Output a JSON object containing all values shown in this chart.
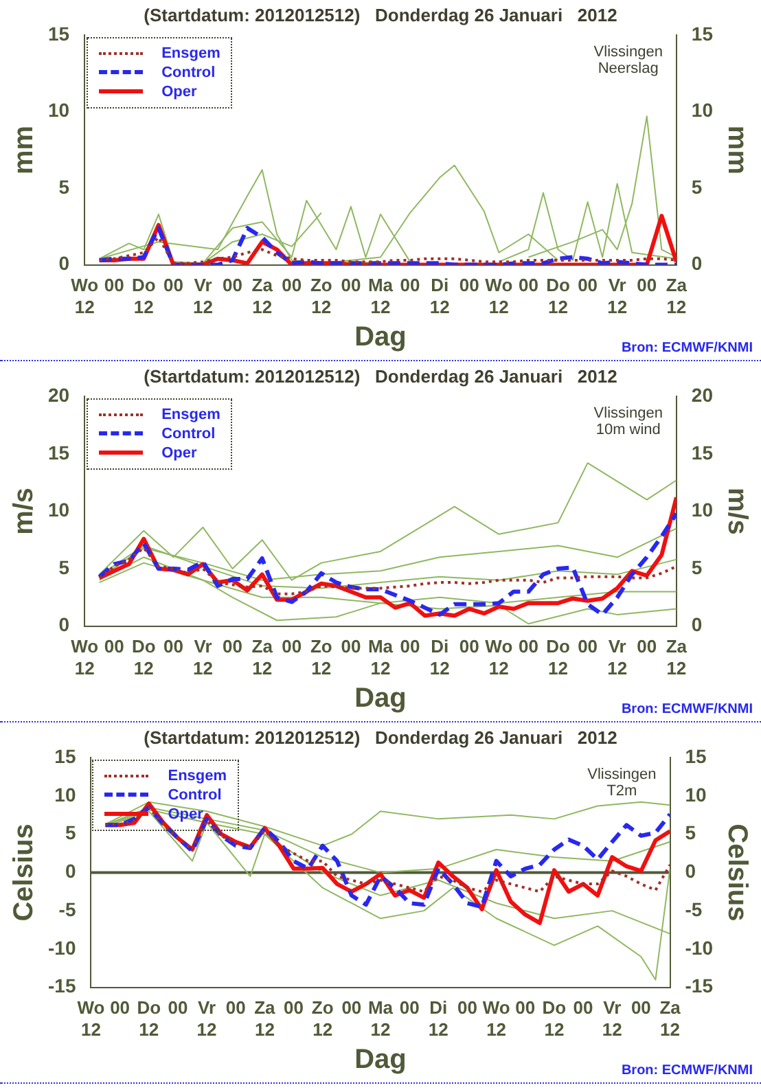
{
  "chart_data": [
    {
      "type": "line",
      "title": "(Startdatum: 2012012512)   Donderdag 26 Januari   2012",
      "xlabel": "Dag",
      "ylabel": "mm",
      "y2label": "mm",
      "annotations": [
        "Vlissingen",
        "Neerslag",
        "Bron: ECMWF/KNMI"
      ],
      "x": [
        "2012-01-25T18:00",
        "2012-01-26T00:00",
        "2012-01-26T06:00",
        "2012-01-26T12:00",
        "2012-01-26T18:00",
        "2012-01-27T00:00",
        "2012-01-27T06:00",
        "2012-01-27T12:00",
        "2012-01-27T18:00",
        "2012-01-28T00:00",
        "2012-01-28T06:00",
        "2012-01-28T12:00",
        "2012-01-28T18:00",
        "2012-01-29T00:00",
        "2012-01-29T06:00",
        "2012-01-29T12:00",
        "2012-01-29T18:00",
        "2012-01-30T00:00",
        "2012-01-30T06:00",
        "2012-01-30T12:00",
        "2012-01-30T18:00",
        "2012-01-31T00:00",
        "2012-01-31T06:00",
        "2012-01-31T12:00",
        "2012-01-31T18:00",
        "2012-02-01T00:00",
        "2012-02-01T06:00",
        "2012-02-01T12:00",
        "2012-02-01T18:00",
        "2012-02-02T00:00",
        "2012-02-02T06:00",
        "2012-02-02T12:00",
        "2012-02-02T18:00",
        "2012-02-03T00:00",
        "2012-02-03T06:00",
        "2012-02-03T12:00",
        "2012-02-03T18:00",
        "2012-02-04T00:00",
        "2012-02-04T06:00",
        "2012-02-04T12:00"
      ],
      "xlim": [
        "2012-01-25T12:00",
        "2012-02-04T12:00"
      ],
      "xticks": [
        {
          "value": "2012-01-25T12:00",
          "label": "Wo\n12"
        },
        {
          "value": "2012-01-26T00:00",
          "label": "00"
        },
        {
          "value": "2012-01-26T12:00",
          "label": "Do\n12"
        },
        {
          "value": "2012-01-27T00:00",
          "label": "00"
        },
        {
          "value": "2012-01-27T12:00",
          "label": "Vr\n12"
        },
        {
          "value": "2012-01-28T00:00",
          "label": "00"
        },
        {
          "value": "2012-01-28T12:00",
          "label": "Za\n12"
        },
        {
          "value": "2012-01-29T00:00",
          "label": "00"
        },
        {
          "value": "2012-01-29T12:00",
          "label": "Zo\n12"
        },
        {
          "value": "2012-01-30T00:00",
          "label": "00"
        },
        {
          "value": "2012-01-30T12:00",
          "label": "Ma\n12"
        },
        {
          "value": "2012-01-31T00:00",
          "label": "00"
        },
        {
          "value": "2012-01-31T12:00",
          "label": "Di\n12"
        },
        {
          "value": "2012-02-01T00:00",
          "label": "00"
        },
        {
          "value": "2012-02-01T12:00",
          "label": "Wo\n12"
        },
        {
          "value": "2012-02-02T00:00",
          "label": "00"
        },
        {
          "value": "2012-02-02T12:00",
          "label": "Do\n12"
        },
        {
          "value": "2012-02-03T00:00",
          "label": "00"
        },
        {
          "value": "2012-02-03T12:00",
          "label": "Vr\n12"
        },
        {
          "value": "2012-02-04T00:00",
          "label": "00"
        },
        {
          "value": "2012-02-04T12:00",
          "label": "Za\n12"
        }
      ],
      "ylim": [
        0,
        15
      ],
      "yticks": [
        0,
        5,
        10,
        15
      ],
      "y2lim": [
        0,
        15
      ],
      "y2ticks": [
        0,
        5,
        10,
        15
      ],
      "grid": false,
      "legend": "top left",
      "marker": "none",
      "series": [
        {
          "name": "Ensgem",
          "color": "#a03028",
          "line_style": "dotted",
          "values": [
            0.3,
            0.4,
            0.6,
            0.8,
            1.8,
            0.1,
            0.1,
            0.2,
            0.4,
            0.5,
            0.8,
            1.0,
            0.6,
            0.4,
            0.3,
            0.3,
            0.3,
            0.2,
            0.2,
            0.2,
            0.3,
            0.3,
            0.4,
            0.4,
            0.4,
            0.3,
            0.2,
            0.2,
            0.2,
            0.3,
            0.3,
            0.3,
            0.3,
            0.3,
            0.3,
            0.3,
            0.3,
            0.4,
            0.4,
            0.3
          ]
        },
        {
          "name": "Control",
          "color": "#2828f0",
          "line_style": "dashed",
          "values": [
            0.3,
            0.4,
            0.4,
            0.5,
            2.4,
            0,
            0,
            0,
            0,
            0.3,
            2.4,
            1.8,
            0.8,
            0.1,
            0.2,
            0.1,
            0.1,
            0.1,
            0.1,
            0.1,
            0.1,
            0.1,
            0.1,
            0.1,
            0,
            0,
            0,
            0,
            0.1,
            0.1,
            0.1,
            0.4,
            0.5,
            0.4,
            0.1,
            0.2,
            0.1,
            0,
            0,
            0
          ]
        },
        {
          "name": "Oper",
          "color": "#f01010",
          "line_style": "solid",
          "values": [
            0.3,
            0.3,
            0.4,
            0.4,
            2.6,
            0,
            0,
            0,
            0.4,
            0.3,
            0.1,
            1.5,
            1.0,
            0,
            0.1,
            0.1,
            0.1,
            0,
            0,
            0,
            0,
            0,
            0,
            0,
            0,
            0,
            0,
            0,
            0,
            0,
            0,
            0,
            0,
            0,
            0,
            0,
            0,
            0,
            3.2,
            0.2
          ]
        },
        {
          "color": "#90b860",
          "line_style": "solid",
          "x": [
            "2012-01-25T18:00",
            "2012-01-26T18:00",
            "2012-01-27T18:00",
            "2012-01-28T06:00",
            "2012-01-28T12:00",
            "2012-01-28T18:00",
            "2012-01-29T00:00",
            "2012-01-29T12:00",
            "2012-01-30T00:00",
            "2012-01-30T12:00"
          ],
          "values": [
            0.4,
            1.5,
            1.0,
            4.5,
            6.2,
            2.0,
            0.3,
            0.1,
            0.2,
            0.1
          ]
        },
        {
          "color": "#90b860",
          "line_style": "solid",
          "x": [
            "2012-01-29T12:00",
            "2012-01-30T12:00",
            "2012-01-31T00:00",
            "2012-01-31T12:00",
            "2012-01-31T18:00",
            "2012-02-01T06:00",
            "2012-02-01T12:00",
            "2012-02-02T00:00",
            "2012-02-02T12:00"
          ],
          "values": [
            0.1,
            0.5,
            3.4,
            5.7,
            6.5,
            3.5,
            0.8,
            2.0,
            0.3
          ]
        },
        {
          "color": "#90b860",
          "line_style": "solid",
          "x": [
            "2012-02-02T00:00",
            "2012-02-02T18:00",
            "2012-02-03T06:00",
            "2012-02-03T12:00",
            "2012-02-03T18:00",
            "2012-02-04T00:00",
            "2012-02-04T06:00",
            "2012-02-04T12:00"
          ],
          "values": [
            0.5,
            1.5,
            2.3,
            1.0,
            4.0,
            9.7,
            1.0,
            0.5
          ]
        },
        {
          "color": "#90b860",
          "line_style": "solid",
          "x": [
            "2012-01-27T12:00",
            "2012-01-28T00:00",
            "2012-01-28T12:00",
            "2012-01-29T00:00",
            "2012-01-29T06:00",
            "2012-01-29T18:00",
            "2012-01-30T00:00",
            "2012-01-30T06:00",
            "2012-01-30T12:00",
            "2012-01-31T00:00"
          ],
          "values": [
            0.1,
            2.4,
            2.8,
            0.5,
            4.2,
            1.0,
            3.8,
            0.5,
            3.3,
            0.2
          ]
        },
        {
          "color": "#90b860",
          "line_style": "solid",
          "x": [
            "2012-02-01T12:00",
            "2012-02-02T00:00",
            "2012-02-02T06:00",
            "2012-02-02T12:00",
            "2012-02-02T18:00",
            "2012-02-03T00:00",
            "2012-02-03T06:00",
            "2012-02-03T12:00",
            "2012-02-03T18:00",
            "2012-02-04T12:00"
          ],
          "values": [
            0.2,
            1.0,
            4.7,
            1.0,
            0.3,
            4.1,
            0.5,
            5.3,
            0.8,
            0.4
          ]
        },
        {
          "color": "#90b860",
          "line_style": "solid",
          "x": [
            "2012-01-25T18:00",
            "2012-01-26T06:00",
            "2012-01-26T12:00",
            "2012-01-26T18:00",
            "2012-01-27T00:00",
            "2012-01-27T12:00",
            "2012-01-28T00:00",
            "2012-01-28T12:00",
            "2012-01-29T00:00",
            "2012-01-29T12:00"
          ],
          "values": [
            0.4,
            1.4,
            1.0,
            3.3,
            0.2,
            0.1,
            1.5,
            2.0,
            1.2,
            3.4
          ]
        }
      ]
    },
    {
      "type": "line",
      "title": "(Startdatum: 2012012512)   Donderdag 26 Januari   2012",
      "xlabel": "Dag",
      "ylabel": "m/s",
      "y2label": "m/s",
      "annotations": [
        "Vlissingen",
        "10m wind",
        "Bron: ECMWF/KNMI"
      ],
      "x": [
        "2012-01-25T18:00",
        "2012-01-26T00:00",
        "2012-01-26T06:00",
        "2012-01-26T12:00",
        "2012-01-26T18:00",
        "2012-01-27T00:00",
        "2012-01-27T06:00",
        "2012-01-27T12:00",
        "2012-01-27T18:00",
        "2012-01-28T00:00",
        "2012-01-28T06:00",
        "2012-01-28T12:00",
        "2012-01-28T18:00",
        "2012-01-29T00:00",
        "2012-01-29T06:00",
        "2012-01-29T12:00",
        "2012-01-29T18:00",
        "2012-01-30T00:00",
        "2012-01-30T06:00",
        "2012-01-30T12:00",
        "2012-01-30T18:00",
        "2012-01-31T00:00",
        "2012-01-31T06:00",
        "2012-01-31T12:00",
        "2012-01-31T18:00",
        "2012-02-01T00:00",
        "2012-02-01T06:00",
        "2012-02-01T12:00",
        "2012-02-01T18:00",
        "2012-02-02T00:00",
        "2012-02-02T06:00",
        "2012-02-02T12:00",
        "2012-02-02T18:00",
        "2012-02-03T00:00",
        "2012-02-03T06:00",
        "2012-02-03T12:00",
        "2012-02-03T18:00",
        "2012-02-04T00:00",
        "2012-02-04T06:00",
        "2012-02-04T12:00"
      ],
      "xlim": [
        "2012-01-25T12:00",
        "2012-02-04T12:00"
      ],
      "xticks": [
        {
          "value": "2012-01-25T12:00",
          "label": "Wo\n12"
        },
        {
          "value": "2012-01-26T00:00",
          "label": "00"
        },
        {
          "value": "2012-01-26T12:00",
          "label": "Do\n12"
        },
        {
          "value": "2012-01-27T00:00",
          "label": "00"
        },
        {
          "value": "2012-01-27T12:00",
          "label": "Vr\n12"
        },
        {
          "value": "2012-01-28T00:00",
          "label": "00"
        },
        {
          "value": "2012-01-28T12:00",
          "label": "Za\n12"
        },
        {
          "value": "2012-01-29T00:00",
          "label": "00"
        },
        {
          "value": "2012-01-29T12:00",
          "label": "Zo\n12"
        },
        {
          "value": "2012-01-30T00:00",
          "label": "00"
        },
        {
          "value": "2012-01-30T12:00",
          "label": "Ma\n12"
        },
        {
          "value": "2012-01-31T00:00",
          "label": "00"
        },
        {
          "value": "2012-01-31T12:00",
          "label": "Di\n12"
        },
        {
          "value": "2012-02-01T00:00",
          "label": "00"
        },
        {
          "value": "2012-02-01T12:00",
          "label": "Wo\n12"
        },
        {
          "value": "2012-02-02T00:00",
          "label": "00"
        },
        {
          "value": "2012-02-02T12:00",
          "label": "Do\n12"
        },
        {
          "value": "2012-02-03T00:00",
          "label": "00"
        },
        {
          "value": "2012-02-03T12:00",
          "label": "Vr\n12"
        },
        {
          "value": "2012-02-04T00:00",
          "label": "00"
        },
        {
          "value": "2012-02-04T12:00",
          "label": "Za\n12"
        }
      ],
      "ylim": [
        0,
        20
      ],
      "yticks": [
        0,
        5,
        10,
        15,
        20
      ],
      "y2lim": [
        0,
        20
      ],
      "y2ticks": [
        0,
        5,
        10,
        15,
        20
      ],
      "grid": false,
      "legend": "top left",
      "marker": "none",
      "series": [
        {
          "name": "Ensgem",
          "color": "#a03028",
          "line_style": "dotted",
          "values": [
            4.2,
            5.2,
            5.8,
            6.8,
            5.2,
            5.0,
            4.6,
            5.0,
            3.8,
            3.6,
            3.4,
            3.5,
            2.8,
            2.8,
            3.0,
            3.5,
            3.4,
            3.3,
            3.3,
            3.3,
            3.4,
            3.5,
            3.7,
            3.8,
            3.8,
            3.7,
            3.8,
            4.0,
            4.0,
            4.0,
            3.8,
            4.2,
            4.2,
            4.3,
            4.3,
            4.3,
            4.2,
            4.2,
            4.6,
            5.2
          ]
        },
        {
          "name": "Control",
          "color": "#2828f0",
          "line_style": "dashed",
          "values": [
            4.3,
            5.4,
            5.7,
            7.2,
            5.0,
            5.0,
            4.9,
            5.6,
            3.5,
            4.1,
            4.1,
            5.9,
            2.5,
            2.1,
            3.0,
            4.6,
            3.8,
            3.4,
            3.2,
            3.2,
            2.7,
            2.2,
            1.6,
            1.0,
            1.9,
            1.9,
            1.9,
            2.0,
            3.0,
            3.0,
            4.5,
            5.0,
            5.1,
            1.9,
            1.0,
            2.5,
            4.5,
            6.0,
            7.8,
            9.8
          ]
        },
        {
          "name": "Oper",
          "color": "#f01010",
          "line_style": "solid",
          "values": [
            4.2,
            4.8,
            5.4,
            7.6,
            5.0,
            4.9,
            4.5,
            5.4,
            3.8,
            4.0,
            3.1,
            4.5,
            2.3,
            2.3,
            3.0,
            3.7,
            3.5,
            3.0,
            2.5,
            2.5,
            1.6,
            2.0,
            0.9,
            1.1,
            0.9,
            1.5,
            1.1,
            1.7,
            1.5,
            2.0,
            2.0,
            2.0,
            2.4,
            2.2,
            2.4,
            3.3,
            4.8,
            4.4,
            6.2,
            11.2
          ]
        },
        {
          "color": "#90b860",
          "line_style": "solid",
          "x": [
            "2012-01-25T18:00",
            "2012-01-26T12:00",
            "2012-01-27T00:00",
            "2012-01-27T12:00",
            "2012-01-28T00:00",
            "2012-01-28T12:00",
            "2012-01-29T00:00",
            "2012-01-29T12:00",
            "2012-01-30T12:00",
            "2012-01-31T18:00",
            "2012-02-01T12:00",
            "2012-02-02T12:00",
            "2012-02-03T00:00",
            "2012-02-04T00:00",
            "2012-02-04T12:00"
          ],
          "values": [
            4.5,
            8.3,
            6.0,
            8.6,
            5.0,
            7.5,
            4.0,
            5.5,
            6.5,
            10.4,
            8.0,
            9.0,
            14.2,
            11.0,
            12.7
          ]
        },
        {
          "color": "#90b860",
          "line_style": "solid",
          "x": [
            "2012-01-25T18:00",
            "2012-01-26T12:00",
            "2012-01-27T12:00",
            "2012-01-28T00:00",
            "2012-01-28T18:00",
            "2012-01-29T18:00",
            "2012-01-30T12:00",
            "2012-01-31T12:00",
            "2012-02-01T12:00",
            "2012-02-02T00:00",
            "2012-02-03T00:00",
            "2012-02-03T12:00",
            "2012-02-04T12:00"
          ],
          "values": [
            3.8,
            5.5,
            4.0,
            2.5,
            0.5,
            0.8,
            2.0,
            1.5,
            1.8,
            0.2,
            1.5,
            1.0,
            1.5
          ]
        },
        {
          "color": "#90b860",
          "line_style": "solid",
          "x": [
            "2012-01-25T18:00",
            "2012-01-26T12:00",
            "2012-01-27T12:00",
            "2012-01-28T12:00",
            "2012-01-29T12:00",
            "2012-01-30T12:00",
            "2012-01-31T12:00",
            "2012-02-01T12:00",
            "2012-02-02T12:00",
            "2012-02-03T12:00",
            "2012-02-04T12:00"
          ],
          "values": [
            4.2,
            6.8,
            5.5,
            4.0,
            4.5,
            4.8,
            6.0,
            6.5,
            7.0,
            6.0,
            8.5
          ]
        },
        {
          "color": "#90b860",
          "line_style": "solid",
          "x": [
            "2012-01-25T18:00",
            "2012-01-26T12:00",
            "2012-01-27T12:00",
            "2012-01-28T12:00",
            "2012-01-29T12:00",
            "2012-01-30T12:00",
            "2012-01-31T12:00",
            "2012-02-01T12:00",
            "2012-02-02T12:00",
            "2012-02-03T12:00",
            "2012-02-04T12:00"
          ],
          "values": [
            4.0,
            6.0,
            4.0,
            2.5,
            2.5,
            2.0,
            2.5,
            2.0,
            2.5,
            3.0,
            3.0
          ]
        },
        {
          "color": "#90b860",
          "line_style": "solid",
          "x": [
            "2012-01-25T18:00",
            "2012-01-26T12:00",
            "2012-01-27T12:00",
            "2012-01-28T12:00",
            "2012-01-29T12:00",
            "2012-01-30T12:00",
            "2012-01-31T12:00",
            "2012-02-01T12:00",
            "2012-02-02T12:00",
            "2012-02-03T12:00",
            "2012-02-04T12:00"
          ],
          "values": [
            4.4,
            7.0,
            5.2,
            3.5,
            3.3,
            3.8,
            4.3,
            4.0,
            4.8,
            4.5,
            5.8
          ]
        }
      ]
    },
    {
      "type": "line",
      "title": "(Startdatum: 2012012512)   Donderdag 26 Januari   2012",
      "xlabel": "Dag",
      "ylabel": "Celsius",
      "y2label": "Celsius",
      "annotations": [
        "Vlissingen",
        "T2m",
        "Bron: ECMWF/KNMI"
      ],
      "x": [
        "2012-01-25T18:00",
        "2012-01-26T00:00",
        "2012-01-26T06:00",
        "2012-01-26T12:00",
        "2012-01-26T18:00",
        "2012-01-27T00:00",
        "2012-01-27T06:00",
        "2012-01-27T12:00",
        "2012-01-27T18:00",
        "2012-01-28T00:00",
        "2012-01-28T06:00",
        "2012-01-28T12:00",
        "2012-01-28T18:00",
        "2012-01-29T00:00",
        "2012-01-29T06:00",
        "2012-01-29T12:00",
        "2012-01-29T18:00",
        "2012-01-30T00:00",
        "2012-01-30T06:00",
        "2012-01-30T12:00",
        "2012-01-30T18:00",
        "2012-01-31T00:00",
        "2012-01-31T06:00",
        "2012-01-31T12:00",
        "2012-01-31T18:00",
        "2012-02-01T00:00",
        "2012-02-01T06:00",
        "2012-02-01T12:00",
        "2012-02-01T18:00",
        "2012-02-02T00:00",
        "2012-02-02T06:00",
        "2012-02-02T12:00",
        "2012-02-02T18:00",
        "2012-02-03T00:00",
        "2012-02-03T06:00",
        "2012-02-03T12:00",
        "2012-02-03T18:00",
        "2012-02-04T00:00",
        "2012-02-04T06:00",
        "2012-02-04T12:00"
      ],
      "xlim": [
        "2012-01-25T12:00",
        "2012-02-04T12:00"
      ],
      "xticks": [
        {
          "value": "2012-01-25T12:00",
          "label": "Wo\n12"
        },
        {
          "value": "2012-01-26T00:00",
          "label": "00"
        },
        {
          "value": "2012-01-26T12:00",
          "label": "Do\n12"
        },
        {
          "value": "2012-01-27T00:00",
          "label": "00"
        },
        {
          "value": "2012-01-27T12:00",
          "label": "Vr\n12"
        },
        {
          "value": "2012-01-28T00:00",
          "label": "00"
        },
        {
          "value": "2012-01-28T12:00",
          "label": "Za\n12"
        },
        {
          "value": "2012-01-29T00:00",
          "label": "00"
        },
        {
          "value": "2012-01-29T12:00",
          "label": "Zo\n12"
        },
        {
          "value": "2012-01-30T00:00",
          "label": "00"
        },
        {
          "value": "2012-01-30T12:00",
          "label": "Ma\n12"
        },
        {
          "value": "2012-01-31T00:00",
          "label": "00"
        },
        {
          "value": "2012-01-31T12:00",
          "label": "Di\n12"
        },
        {
          "value": "2012-02-01T00:00",
          "label": "00"
        },
        {
          "value": "2012-02-01T12:00",
          "label": "Wo\n12"
        },
        {
          "value": "2012-02-02T00:00",
          "label": "00"
        },
        {
          "value": "2012-02-02T12:00",
          "label": "Do\n12"
        },
        {
          "value": "2012-02-03T00:00",
          "label": "00"
        },
        {
          "value": "2012-02-03T12:00",
          "label": "Vr\n12"
        },
        {
          "value": "2012-02-04T00:00",
          "label": "00"
        },
        {
          "value": "2012-02-04T12:00",
          "label": "Za\n12"
        }
      ],
      "ylim": [
        -15,
        15
      ],
      "yticks": [
        -15,
        -10,
        -5,
        0,
        5,
        10,
        15
      ],
      "y2lim": [
        -15,
        15
      ],
      "y2ticks": [
        -15,
        -10,
        -5,
        0,
        5,
        10,
        15
      ],
      "grid": false,
      "legend": "top left",
      "marker": "none",
      "ref_lines": [
        {
          "axis": "y",
          "value": 0,
          "color": "#505a38"
        }
      ],
      "series": [
        {
          "name": "Ensgem",
          "color": "#a03028",
          "line_style": "dotted",
          "values": [
            6.3,
            6.3,
            6.8,
            8.5,
            6.2,
            4.5,
            3.0,
            6.8,
            4.8,
            3.8,
            3.3,
            5.5,
            3.5,
            2.5,
            1.5,
            1.5,
            -0.5,
            -1.0,
            -1.5,
            -1.0,
            -1.5,
            -2.0,
            -2.5,
            -0.5,
            -1.0,
            -2.0,
            -2.5,
            -1.0,
            -1.5,
            -2.0,
            -2.5,
            -0.5,
            -1.0,
            -1.5,
            -1.5,
            0.2,
            -0.5,
            -1.5,
            -2.3,
            1.0
          ]
        },
        {
          "name": "Control",
          "color": "#2828f0",
          "line_style": "dashed",
          "values": [
            6.2,
            6.2,
            7.0,
            8.5,
            6.3,
            4.5,
            2.8,
            7.0,
            4.8,
            3.5,
            3.2,
            5.8,
            4.0,
            1.5,
            0.5,
            3.5,
            1.5,
            -3.0,
            -4.2,
            -0.5,
            -2.0,
            -4.0,
            -4.2,
            0.5,
            -1.5,
            -4.0,
            -4.5,
            1.5,
            -0.5,
            0.5,
            1.0,
            3.0,
            4.3,
            3.5,
            1.7,
            4.0,
            6.2,
            4.8,
            5.2,
            7.6
          ]
        },
        {
          "name": "Oper",
          "color": "#f01010",
          "line_style": "solid",
          "values": [
            6.2,
            6.2,
            6.5,
            9.0,
            6.5,
            4.5,
            3.0,
            7.5,
            5.0,
            4.0,
            3.3,
            5.8,
            3.5,
            0.5,
            0.5,
            0.6,
            -1.5,
            -2.5,
            -1.5,
            -0.2,
            -3.0,
            -2.3,
            -3.3,
            1.3,
            -0.5,
            -2.0,
            -4.8,
            0.3,
            -3.8,
            -5.5,
            -6.6,
            0.3,
            -2.5,
            -1.5,
            -3.0,
            2.0,
            0.8,
            0.2,
            4.2,
            5.4
          ]
        },
        {
          "color": "#90b860",
          "line_style": "solid",
          "x": [
            "2012-01-25T18:00",
            "2012-01-26T12:00",
            "2012-01-27T12:00",
            "2012-01-28T12:00",
            "2012-01-29T12:00",
            "2012-01-30T00:00",
            "2012-01-30T12:00",
            "2012-01-31T12:00",
            "2012-02-01T18:00",
            "2012-02-02T12:00",
            "2012-02-03T06:00",
            "2012-02-04T00:00",
            "2012-02-04T12:00"
          ],
          "values": [
            6.3,
            9.2,
            8.0,
            6.0,
            3.5,
            5.0,
            8.0,
            7.0,
            7.5,
            7.0,
            8.7,
            9.2,
            8.8
          ]
        },
        {
          "color": "#90b860",
          "line_style": "solid",
          "x": [
            "2012-01-25T18:00",
            "2012-01-26T12:00",
            "2012-01-27T06:00",
            "2012-01-27T12:00",
            "2012-01-28T06:00",
            "2012-01-28T12:00",
            "2012-01-29T12:00",
            "2012-01-30T00:00",
            "2012-01-30T12:00",
            "2012-01-31T06:00",
            "2012-01-31T18:00",
            "2012-02-01T12:00",
            "2012-02-02T12:00",
            "2012-02-03T06:00",
            "2012-02-04T00:00",
            "2012-02-04T06:00",
            "2012-02-04T12:00"
          ],
          "values": [
            6.0,
            8.0,
            1.5,
            6.5,
            -0.5,
            5.0,
            -2.0,
            -4.0,
            -6.0,
            -5.0,
            -2.0,
            -6.0,
            -9.5,
            -7.0,
            -11.0,
            -14.0,
            0.5
          ]
        },
        {
          "color": "#90b860",
          "line_style": "solid",
          "x": [
            "2012-01-25T18:00",
            "2012-01-26T12:00",
            "2012-01-27T12:00",
            "2012-01-28T12:00",
            "2012-01-29T12:00",
            "2012-01-30T12:00",
            "2012-01-31T12:00",
            "2012-02-01T12:00",
            "2012-02-02T12:00",
            "2012-02-03T12:00",
            "2012-02-04T12:00"
          ],
          "values": [
            6.2,
            8.5,
            7.0,
            5.5,
            2.0,
            0.0,
            0.5,
            3.0,
            2.0,
            1.5,
            4.0
          ]
        },
        {
          "color": "#90b860",
          "line_style": "solid",
          "x": [
            "2012-01-25T18:00",
            "2012-01-26T12:00",
            "2012-01-27T12:00",
            "2012-01-28T12:00",
            "2012-01-29T12:00",
            "2012-01-30T12:00",
            "2012-01-31T12:00",
            "2012-02-01T12:00",
            "2012-02-02T12:00",
            "2012-02-03T12:00",
            "2012-02-04T12:00"
          ],
          "values": [
            6.2,
            8.2,
            6.5,
            5.0,
            0.0,
            -3.0,
            -1.0,
            -4.0,
            -6.0,
            -5.0,
            -8.0
          ]
        }
      ]
    }
  ]
}
